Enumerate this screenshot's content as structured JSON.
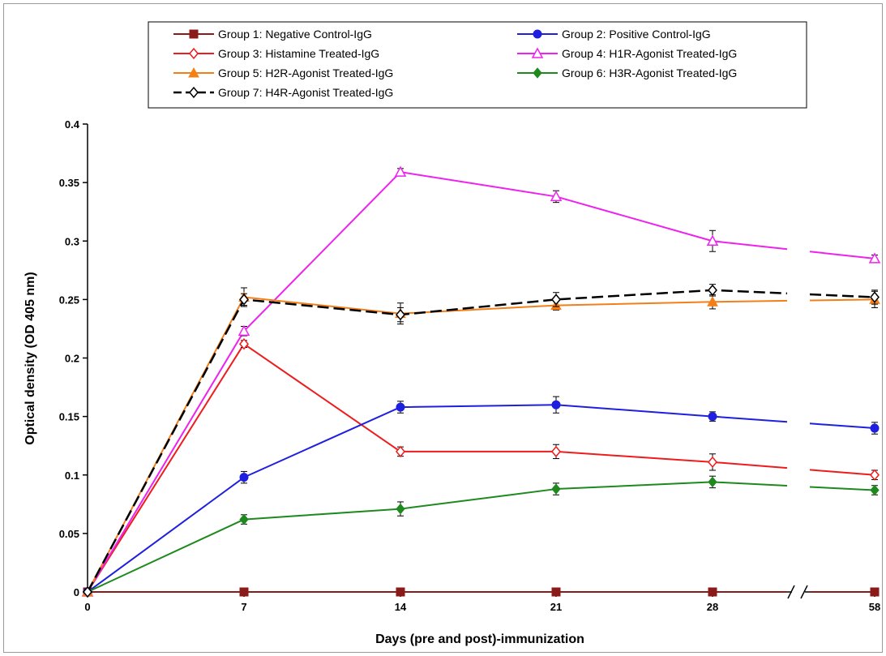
{
  "chart_data": {
    "type": "line",
    "title": "",
    "xlabel": "Days (pre and post)-immunization",
    "ylabel": "Optical density (OD 405 nm)",
    "x": [
      0,
      7,
      14,
      21,
      28,
      58
    ],
    "x_tick_labels": [
      "0",
      "7",
      "14",
      "21",
      "28",
      "58"
    ],
    "x_axis_break": "between 28 and 58",
    "ylim": [
      0,
      0.4
    ],
    "y_tick_labels": [
      "0",
      "0.05",
      "0.1",
      "0.15",
      "0.2",
      "0.25",
      "0.3",
      "0.35",
      "0.4"
    ],
    "grid": false,
    "legend_position": "top",
    "error_bars": true,
    "series": [
      {
        "name": "Group 1: Negative Control-IgG",
        "color": "#8b1a1a",
        "marker": "square-filled",
        "dash": "solid",
        "values": [
          0,
          0,
          0,
          0,
          0,
          0
        ],
        "errors": [
          0,
          0,
          0,
          0,
          0,
          0
        ]
      },
      {
        "name": "Group 2: Positive Control-IgG",
        "color": "#1f1fe0",
        "marker": "circle-filled",
        "dash": "solid",
        "values": [
          0,
          0.098,
          0.158,
          0.16,
          0.15,
          0.14
        ],
        "errors": [
          0,
          0.005,
          0.005,
          0.007,
          0.004,
          0.005
        ]
      },
      {
        "name": "Group 3: Histamine Treated-IgG",
        "color": "#ee1c1c",
        "marker": "diamond-open",
        "dash": "solid",
        "values": [
          0,
          0.212,
          0.12,
          0.12,
          0.111,
          0.1
        ],
        "errors": [
          0,
          0.003,
          0.004,
          0.006,
          0.007,
          0.004
        ]
      },
      {
        "name": "Group 4: H1R-Agonist Treated-IgG",
        "color": "#ee22ee",
        "marker": "triangle-open",
        "dash": "solid",
        "values": [
          0,
          0.223,
          0.359,
          0.338,
          0.3,
          0.285
        ],
        "errors": [
          0,
          0.004,
          0.003,
          0.005,
          0.009,
          0.003
        ]
      },
      {
        "name": "Group 5: H2R-Agonist Treated-IgG",
        "color": "#f57f17",
        "marker": "triangle-filled",
        "dash": "solid",
        "values": [
          0,
          0.252,
          0.238,
          0.245,
          0.248,
          0.25
        ],
        "errors": [
          0,
          0.008,
          0.009,
          0.004,
          0.006,
          0.007
        ]
      },
      {
        "name": "Group 6: H3R-Agonist Treated-IgG",
        "color": "#1e8a1e",
        "marker": "diamond-filled",
        "dash": "solid",
        "values": [
          0,
          0.062,
          0.071,
          0.088,
          0.094,
          0.087
        ],
        "errors": [
          0,
          0.004,
          0.006,
          0.005,
          0.005,
          0.004
        ]
      },
      {
        "name": "Group 7: H4R-Agonist Treated-IgG",
        "color": "#000000",
        "marker": "diamond-open",
        "dash": "dashed",
        "values": [
          0,
          0.25,
          0.237,
          0.25,
          0.258,
          0.252
        ],
        "errors": [
          0,
          0.005,
          0.006,
          0.006,
          0.005,
          0.006
        ]
      }
    ]
  }
}
